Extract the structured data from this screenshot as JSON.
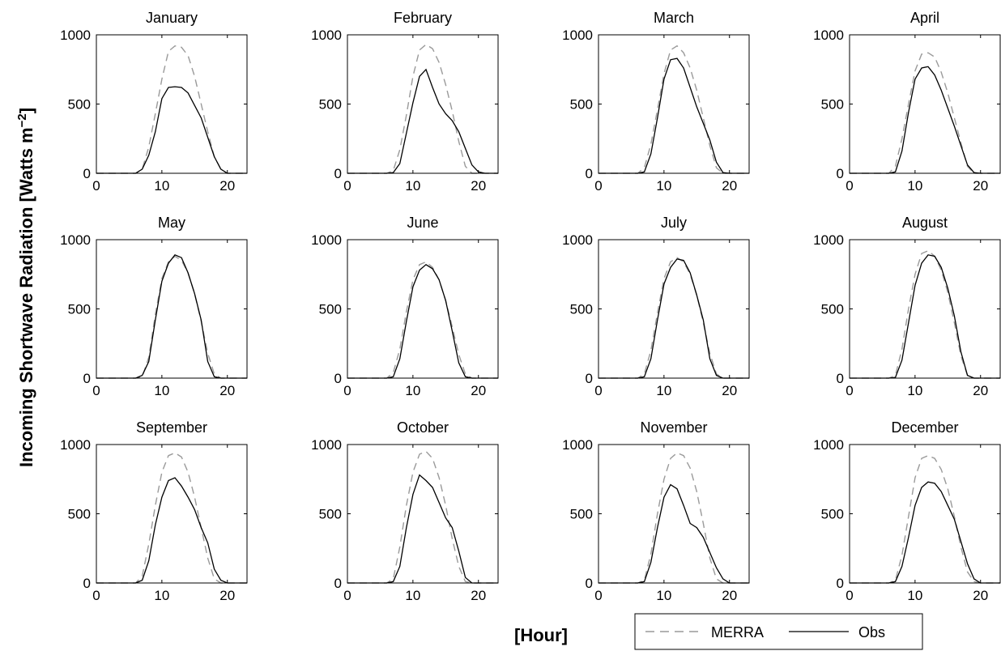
{
  "chart_data": {
    "type": "line",
    "ylabel_main": "Incoming Shortwave Radiation [Watts m",
    "ylabel_unit_exp": "−2",
    "ylabel_close": "]",
    "xlabel": "[Hour]",
    "xlim": [
      0,
      23
    ],
    "ylim": [
      0,
      1000
    ],
    "xticks": [
      0,
      10,
      20
    ],
    "yticks": [
      0,
      500,
      1000
    ],
    "grid": false,
    "legend": {
      "placement": "bottom-right",
      "entries": [
        {
          "name": "MERRA",
          "style": "dashed",
          "color": "#9a9a9a"
        },
        {
          "name": "Obs",
          "style": "solid",
          "color": "#000000"
        }
      ]
    },
    "hours": [
      0,
      1,
      2,
      3,
      4,
      5,
      6,
      7,
      8,
      9,
      10,
      11,
      12,
      13,
      14,
      15,
      16,
      17,
      18,
      19,
      20,
      21,
      22,
      23
    ],
    "panels": [
      {
        "title": "January",
        "merra": [
          0,
          0,
          0,
          0,
          0,
          0,
          0,
          30,
          190,
          430,
          680,
          880,
          920,
          910,
          850,
          700,
          500,
          300,
          120,
          30,
          0,
          0,
          0,
          0
        ],
        "obs": [
          0,
          0,
          0,
          0,
          0,
          0,
          0,
          30,
          130,
          300,
          540,
          620,
          625,
          620,
          580,
          490,
          400,
          260,
          120,
          30,
          0,
          0,
          0,
          0
        ]
      },
      {
        "title": "February",
        "merra": [
          0,
          0,
          0,
          0,
          0,
          0,
          0,
          20,
          170,
          420,
          700,
          890,
          930,
          900,
          800,
          640,
          450,
          230,
          50,
          0,
          0,
          0,
          0,
          0
        ],
        "obs": [
          0,
          0,
          0,
          0,
          0,
          0,
          0,
          5,
          70,
          290,
          510,
          700,
          750,
          620,
          500,
          430,
          380,
          300,
          180,
          60,
          10,
          0,
          0,
          0
        ]
      },
      {
        "title": "March",
        "merra": [
          0,
          0,
          0,
          0,
          0,
          0,
          0,
          40,
          210,
          460,
          720,
          890,
          920,
          870,
          760,
          600,
          400,
          200,
          40,
          0,
          0,
          0,
          0,
          0
        ],
        "obs": [
          0,
          0,
          0,
          0,
          0,
          0,
          0,
          10,
          140,
          400,
          680,
          820,
          830,
          760,
          620,
          480,
          360,
          240,
          80,
          5,
          0,
          0,
          0,
          0
        ]
      },
      {
        "title": "April",
        "merra": [
          0,
          0,
          0,
          0,
          0,
          0,
          0,
          50,
          250,
          500,
          740,
          860,
          870,
          840,
          730,
          580,
          400,
          220,
          50,
          0,
          0,
          0,
          0,
          0
        ],
        "obs": [
          0,
          0,
          0,
          0,
          0,
          0,
          0,
          10,
          160,
          440,
          680,
          760,
          770,
          710,
          600,
          470,
          340,
          200,
          60,
          5,
          0,
          0,
          0,
          0
        ]
      },
      {
        "title": "May",
        "merra": [
          0,
          0,
          0,
          0,
          0,
          0,
          0,
          10,
          150,
          460,
          720,
          840,
          880,
          850,
          760,
          610,
          410,
          180,
          30,
          0,
          0,
          0,
          0,
          0
        ],
        "obs": [
          0,
          0,
          0,
          0,
          0,
          0,
          0,
          20,
          120,
          420,
          700,
          830,
          890,
          870,
          760,
          610,
          420,
          120,
          10,
          0,
          0,
          0,
          0,
          0
        ]
      },
      {
        "title": "June",
        "merra": [
          0,
          0,
          0,
          0,
          0,
          0,
          0,
          40,
          210,
          480,
          710,
          820,
          840,
          800,
          710,
          560,
          370,
          170,
          30,
          0,
          0,
          0,
          0,
          0
        ],
        "obs": [
          0,
          0,
          0,
          0,
          0,
          0,
          0,
          10,
          140,
          410,
          660,
          780,
          820,
          790,
          710,
          560,
          340,
          110,
          10,
          0,
          0,
          0,
          0,
          0
        ]
      },
      {
        "title": "July",
        "merra": [
          0,
          0,
          0,
          0,
          0,
          0,
          0,
          30,
          200,
          470,
          720,
          840,
          870,
          840,
          750,
          600,
          400,
          180,
          30,
          0,
          0,
          0,
          0,
          0
        ],
        "obs": [
          0,
          0,
          0,
          0,
          0,
          0,
          0,
          10,
          140,
          420,
          680,
          800,
          860,
          850,
          760,
          600,
          420,
          140,
          20,
          0,
          0,
          0,
          0,
          0
        ]
      },
      {
        "title": "August",
        "merra": [
          0,
          0,
          0,
          0,
          0,
          0,
          0,
          20,
          210,
          500,
          750,
          900,
          920,
          880,
          780,
          620,
          400,
          160,
          20,
          0,
          0,
          0,
          0,
          0
        ],
        "obs": [
          0,
          0,
          0,
          0,
          0,
          0,
          0,
          5,
          130,
          400,
          670,
          830,
          890,
          880,
          800,
          650,
          450,
          190,
          20,
          0,
          0,
          0,
          0,
          0
        ]
      },
      {
        "title": "September",
        "merra": [
          0,
          0,
          0,
          0,
          0,
          0,
          0,
          50,
          280,
          560,
          800,
          920,
          940,
          910,
          800,
          620,
          400,
          180,
          30,
          0,
          0,
          0,
          0,
          0
        ],
        "obs": [
          0,
          0,
          0,
          0,
          0,
          0,
          0,
          20,
          160,
          420,
          620,
          740,
          760,
          700,
          620,
          530,
          400,
          290,
          100,
          20,
          0,
          0,
          0,
          0
        ]
      },
      {
        "title": "October",
        "merra": [
          0,
          0,
          0,
          0,
          0,
          0,
          0,
          30,
          260,
          560,
          800,
          930,
          950,
          900,
          760,
          560,
          320,
          120,
          10,
          0,
          0,
          0,
          0,
          0
        ],
        "obs": [
          0,
          0,
          0,
          0,
          0,
          0,
          0,
          10,
          120,
          400,
          640,
          780,
          740,
          690,
          580,
          470,
          400,
          230,
          40,
          0,
          0,
          0,
          0,
          0
        ]
      },
      {
        "title": "November",
        "merra": [
          0,
          0,
          0,
          0,
          0,
          0,
          0,
          20,
          210,
          500,
          750,
          900,
          940,
          920,
          830,
          660,
          430,
          180,
          30,
          0,
          0,
          0,
          0,
          0
        ],
        "obs": [
          0,
          0,
          0,
          0,
          0,
          0,
          0,
          10,
          150,
          400,
          620,
          710,
          680,
          560,
          430,
          400,
          330,
          220,
          110,
          30,
          0,
          0,
          0,
          0
        ]
      },
      {
        "title": "December",
        "merra": [
          0,
          0,
          0,
          0,
          0,
          0,
          0,
          20,
          200,
          480,
          760,
          900,
          920,
          900,
          820,
          680,
          480,
          260,
          80,
          10,
          0,
          0,
          0,
          0
        ],
        "obs": [
          0,
          0,
          0,
          0,
          0,
          0,
          0,
          10,
          120,
          330,
          560,
          690,
          730,
          720,
          660,
          560,
          460,
          300,
          140,
          30,
          0,
          0,
          0,
          0
        ]
      }
    ]
  }
}
